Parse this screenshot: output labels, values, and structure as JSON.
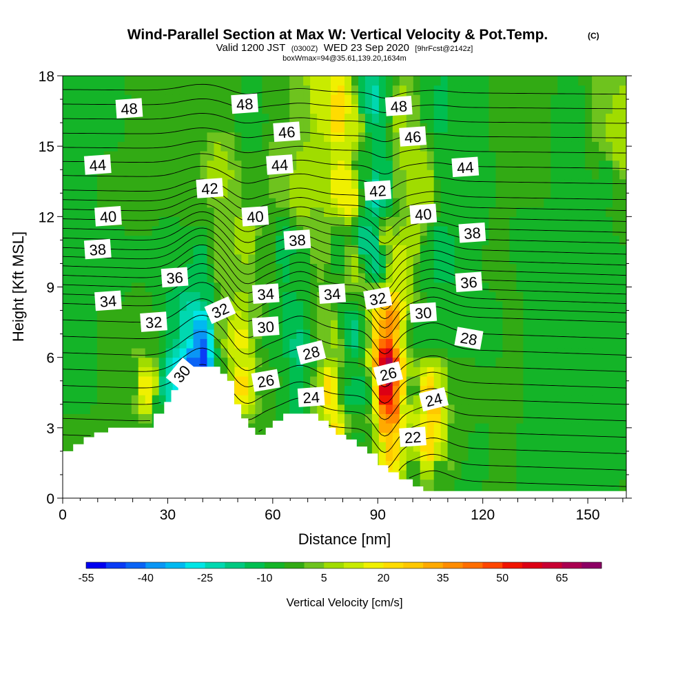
{
  "chart_data": {
    "type": "heatmap",
    "title": "Wind-Parallel Section at Max W: Vertical Velocity & Pot.Temp.",
    "title_suffix": "(C)",
    "subtitle_parts": {
      "a": "Valid 1200 JST",
      "b": "(0300Z)",
      "c": "WED 23 Sep 2020",
      "d": "[9hrFcst@2142z]"
    },
    "subtitle2": "boxWmax=94@35.61,139.20,1634m",
    "xlabel": "Distance [nm]",
    "ylabel": "Height [Kft MSL]",
    "xlim": [
      0,
      161
    ],
    "ylim": [
      0,
      18
    ],
    "x_ticks": [
      0,
      30,
      60,
      90,
      120,
      150
    ],
    "y_ticks": [
      0,
      3,
      6,
      9,
      12,
      15,
      18
    ],
    "colorbar": {
      "title": "Vertical Velocity [cm/s]",
      "tick_labels": [
        "-55",
        "-40",
        "-25",
        "-10",
        "5",
        "20",
        "35",
        "50",
        "65"
      ],
      "range": [
        -55,
        75
      ],
      "step": 5,
      "colors": [
        "#0000f0",
        "#0a3cf5",
        "#0a64f5",
        "#0a96f5",
        "#00b9f0",
        "#00e6e6",
        "#00d8b0",
        "#00c880",
        "#00be50",
        "#14b428",
        "#32aa14",
        "#6ec31e",
        "#a0dc00",
        "#c8eb00",
        "#f0f000",
        "#ffdc00",
        "#ffc800",
        "#ffaa00",
        "#ff8c00",
        "#ff6e00",
        "#ff4600",
        "#f01400",
        "#dc0014",
        "#c80032",
        "#aa0050",
        "#8c0064"
      ]
    },
    "terrain": [
      [
        0,
        2.0
      ],
      [
        3,
        2.0
      ],
      [
        3,
        2.3
      ],
      [
        6,
        2.3
      ],
      [
        6,
        2.6
      ],
      [
        9,
        2.6
      ],
      [
        9,
        2.8
      ],
      [
        13,
        2.8
      ],
      [
        13,
        3.0
      ],
      [
        26,
        3.0
      ],
      [
        26,
        3.6
      ],
      [
        29,
        3.6
      ],
      [
        29,
        4.1
      ],
      [
        31,
        4.1
      ],
      [
        31,
        4.6
      ],
      [
        33,
        4.6
      ],
      [
        33,
        5.1
      ],
      [
        35,
        5.1
      ],
      [
        35,
        5.6
      ],
      [
        45,
        5.6
      ],
      [
        45,
        5.3
      ],
      [
        47,
        5.3
      ],
      [
        47,
        5.0
      ],
      [
        49,
        5.0
      ],
      [
        49,
        4.0
      ],
      [
        51,
        4.0
      ],
      [
        51,
        3.4
      ],
      [
        53,
        3.4
      ],
      [
        53,
        3.0
      ],
      [
        55,
        3.0
      ],
      [
        55,
        2.7
      ],
      [
        58,
        2.7
      ],
      [
        58,
        3.0
      ],
      [
        60,
        3.0
      ],
      [
        60,
        3.3
      ],
      [
        63,
        3.3
      ],
      [
        63,
        3.6
      ],
      [
        73,
        3.6
      ],
      [
        73,
        3.3
      ],
      [
        76,
        3.3
      ],
      [
        76,
        3.0
      ],
      [
        78,
        3.0
      ],
      [
        78,
        2.7
      ],
      [
        81,
        2.7
      ],
      [
        81,
        2.5
      ],
      [
        84,
        2.5
      ],
      [
        84,
        2.2
      ],
      [
        87,
        2.2
      ],
      [
        87,
        1.9
      ],
      [
        90,
        1.9
      ],
      [
        90,
        1.4
      ],
      [
        93,
        1.4
      ],
      [
        93,
        1.1
      ],
      [
        96,
        1.1
      ],
      [
        96,
        0.8
      ],
      [
        100,
        0.8
      ],
      [
        100,
        0.5
      ],
      [
        103,
        0.5
      ],
      [
        103,
        0.3
      ],
      [
        110,
        0.3
      ],
      [
        110,
        0.3
      ],
      [
        161,
        0.3
      ]
    ],
    "w_points": [
      [
        6,
        17.5,
        -8
      ],
      [
        13,
        16.5,
        -6
      ],
      [
        25,
        17,
        -4
      ],
      [
        35,
        16,
        -5
      ],
      [
        45,
        17,
        -3
      ],
      [
        54,
        16,
        -7
      ],
      [
        62,
        17,
        -4
      ],
      [
        68,
        16.5,
        3
      ],
      [
        74,
        17,
        12
      ],
      [
        79,
        16.5,
        22
      ],
      [
        83,
        16,
        14
      ],
      [
        87,
        17,
        -15
      ],
      [
        90,
        17,
        -22
      ],
      [
        92,
        17,
        -10
      ],
      [
        96,
        16.5,
        8
      ],
      [
        100,
        16.5,
        3
      ],
      [
        104,
        17,
        -8
      ],
      [
        108,
        16.5,
        -12
      ],
      [
        114,
        17,
        -6
      ],
      [
        125,
        16,
        -5
      ],
      [
        135,
        17,
        -4
      ],
      [
        145,
        16.5,
        -6
      ],
      [
        156,
        17,
        5
      ],
      [
        159,
        15,
        8
      ],
      [
        6,
        14,
        -5
      ],
      [
        15,
        13,
        -3
      ],
      [
        25,
        14,
        -2
      ],
      [
        35,
        13,
        -3
      ],
      [
        45,
        14,
        6
      ],
      [
        55,
        13,
        -2
      ],
      [
        63,
        14,
        4
      ],
      [
        68,
        13,
        8
      ],
      [
        74,
        14,
        6
      ],
      [
        79,
        13.5,
        16
      ],
      [
        82,
        13,
        18
      ],
      [
        86,
        14,
        -8
      ],
      [
        90,
        13,
        -22
      ],
      [
        92,
        13.5,
        -14
      ],
      [
        96,
        13.5,
        2
      ],
      [
        99,
        14,
        10
      ],
      [
        104,
        13.5,
        8
      ],
      [
        108,
        14,
        -6
      ],
      [
        114,
        13,
        -8
      ],
      [
        125,
        13.5,
        -5
      ],
      [
        135,
        14,
        -4
      ],
      [
        145,
        13,
        -7
      ],
      [
        156,
        13.5,
        -6
      ],
      [
        159,
        12.5,
        -4
      ],
      [
        6,
        11,
        -9
      ],
      [
        14,
        10,
        -7
      ],
      [
        22,
        11,
        -5
      ],
      [
        32,
        10.5,
        -6
      ],
      [
        40,
        9.5,
        -12
      ],
      [
        45,
        10,
        2
      ],
      [
        52,
        11,
        6
      ],
      [
        58,
        10,
        -3
      ],
      [
        64,
        10.5,
        -12
      ],
      [
        68,
        10,
        -6
      ],
      [
        74,
        11,
        4
      ],
      [
        79,
        10.5,
        -8
      ],
      [
        83,
        10,
        6
      ],
      [
        86,
        11,
        -16
      ],
      [
        90,
        10.5,
        -20
      ],
      [
        92,
        11,
        6
      ],
      [
        96,
        10,
        12
      ],
      [
        100,
        11,
        6
      ],
      [
        104,
        10,
        -10
      ],
      [
        109,
        10.5,
        -14
      ],
      [
        114,
        11,
        -5
      ],
      [
        125,
        10.5,
        -5
      ],
      [
        135,
        11,
        -6
      ],
      [
        145,
        10,
        -5
      ],
      [
        156,
        10.5,
        -6
      ],
      [
        6,
        8,
        -6
      ],
      [
        13,
        7.2,
        -4
      ],
      [
        20,
        8,
        -5
      ],
      [
        25,
        7,
        -3
      ],
      [
        31,
        7.5,
        -10
      ],
      [
        35,
        7,
        -22
      ],
      [
        38,
        6.5,
        -35
      ],
      [
        40,
        6.2,
        -45
      ],
      [
        42,
        6.5,
        -28
      ],
      [
        45,
        7,
        4
      ],
      [
        48,
        6.8,
        12
      ],
      [
        51,
        6.8,
        16
      ],
      [
        55,
        7.5,
        4
      ],
      [
        58,
        7,
        -6
      ],
      [
        62,
        6.8,
        -8
      ],
      [
        65,
        7.2,
        -14
      ],
      [
        67,
        6.5,
        -18
      ],
      [
        70,
        6.5,
        -10
      ],
      [
        74,
        7,
        4
      ],
      [
        78,
        7,
        6
      ],
      [
        80,
        7.5,
        -10
      ],
      [
        83,
        7,
        -16
      ],
      [
        86,
        7,
        -10
      ],
      [
        89,
        7,
        20
      ],
      [
        90,
        6.8,
        30
      ],
      [
        92,
        6.2,
        55
      ],
      [
        94,
        7.2,
        40
      ],
      [
        96,
        7,
        28
      ],
      [
        98,
        7,
        8
      ],
      [
        100,
        7,
        -8
      ],
      [
        104,
        7,
        -6
      ],
      [
        108,
        7.5,
        -10
      ],
      [
        113,
        7,
        -8
      ],
      [
        120,
        7,
        -6
      ],
      [
        130,
        8,
        -5
      ],
      [
        140,
        7,
        -6
      ],
      [
        150,
        7.5,
        -5
      ],
      [
        158,
        7,
        -5
      ],
      [
        6,
        5,
        -6
      ],
      [
        13,
        4.5,
        -5
      ],
      [
        20,
        5,
        -3
      ],
      [
        23,
        4.8,
        16
      ],
      [
        25,
        4.5,
        20
      ],
      [
        27,
        4,
        -8
      ],
      [
        30,
        4.5,
        -22
      ],
      [
        33,
        5,
        -30
      ],
      [
        37,
        5.5,
        -42
      ],
      [
        40,
        5.8,
        -50
      ],
      [
        45,
        5.5,
        -6
      ],
      [
        48,
        5,
        10
      ],
      [
        51,
        4.8,
        22
      ],
      [
        54,
        5,
        12
      ],
      [
        57,
        5,
        -5
      ],
      [
        60,
        4.8,
        -4
      ],
      [
        63,
        4.5,
        -5
      ],
      [
        65,
        4.5,
        -12
      ],
      [
        67,
        4.5,
        -14
      ],
      [
        70,
        4.5,
        -8
      ],
      [
        73,
        4.5,
        8
      ],
      [
        76,
        4.5,
        24
      ],
      [
        78,
        4.2,
        16
      ],
      [
        80,
        4.5,
        -4
      ],
      [
        82,
        4.5,
        -12
      ],
      [
        85,
        4.5,
        -14
      ],
      [
        88,
        4.5,
        -6
      ],
      [
        90,
        4.5,
        22
      ],
      [
        92,
        4.5,
        60
      ],
      [
        93,
        5.5,
        70
      ],
      [
        94,
        4,
        50
      ],
      [
        96,
        4.2,
        34
      ],
      [
        98,
        4,
        12
      ],
      [
        100,
        4.5,
        -3
      ],
      [
        102,
        4,
        10
      ],
      [
        104,
        4.3,
        26
      ],
      [
        106,
        4,
        28
      ],
      [
        108,
        4.5,
        10
      ],
      [
        112,
        4.5,
        -3
      ],
      [
        120,
        4.5,
        -5
      ],
      [
        130,
        4.5,
        -5
      ],
      [
        140,
        4.5,
        -6
      ],
      [
        150,
        4.5,
        -6
      ],
      [
        158,
        4.5,
        -5
      ],
      [
        6,
        2.5,
        -4
      ],
      [
        13,
        2.2,
        -5
      ],
      [
        20,
        2.5,
        -4
      ],
      [
        27,
        2.5,
        -6
      ],
      [
        32,
        2,
        -5
      ],
      [
        40,
        2,
        -4
      ],
      [
        50,
        2.5,
        -3
      ],
      [
        57,
        2.2,
        -4
      ],
      [
        62,
        2.5,
        -5
      ],
      [
        70,
        2.5,
        -4
      ],
      [
        75,
        2.5,
        6
      ],
      [
        78,
        2.8,
        22
      ],
      [
        80,
        2.5,
        20
      ],
      [
        82,
        2.5,
        -3
      ],
      [
        84,
        2.5,
        -6
      ],
      [
        86,
        2.5,
        -5
      ],
      [
        88,
        2.5,
        -2
      ],
      [
        90,
        2.5,
        10
      ],
      [
        92,
        3,
        32
      ],
      [
        94,
        2.5,
        28
      ],
      [
        96,
        2.2,
        20
      ],
      [
        98,
        2.2,
        10
      ],
      [
        100,
        2.5,
        4
      ],
      [
        102,
        2.5,
        14
      ],
      [
        104,
        2.5,
        26
      ],
      [
        106,
        2.5,
        22
      ],
      [
        108,
        2.2,
        10
      ],
      [
        112,
        2.5,
        -3
      ],
      [
        118,
        2,
        -6
      ],
      [
        125,
        1.5,
        -5
      ],
      [
        135,
        1.5,
        -6
      ],
      [
        145,
        1,
        -6
      ],
      [
        155,
        1,
        -5
      ],
      [
        100,
        1,
        -4
      ],
      [
        108,
        1,
        -4
      ],
      [
        115,
        0.6,
        -6
      ],
      [
        125,
        0.5,
        -5
      ],
      [
        140,
        0.5,
        -6
      ],
      [
        158,
        0.5,
        -5
      ]
    ],
    "theta_levels_C": [
      20,
      21,
      22,
      23,
      24,
      25,
      26,
      27,
      28,
      29,
      30,
      31,
      32,
      33,
      34,
      35,
      36,
      37,
      38,
      39,
      40,
      41,
      42,
      43,
      44,
      45,
      46,
      47,
      48,
      49
    ],
    "contour_labels": [
      {
        "text": "48",
        "x": 19,
        "y": 16.6,
        "a": -4
      },
      {
        "text": "48",
        "x": 52,
        "y": 16.8,
        "a": -4
      },
      {
        "text": "48",
        "x": 96,
        "y": 16.7,
        "a": -4
      },
      {
        "text": "46",
        "x": 64,
        "y": 15.6,
        "a": -4
      },
      {
        "text": "46",
        "x": 100,
        "y": 15.4,
        "a": -4
      },
      {
        "text": "44",
        "x": 10,
        "y": 14.2,
        "a": -4
      },
      {
        "text": "44",
        "x": 62,
        "y": 14.2,
        "a": -4
      },
      {
        "text": "44",
        "x": 115,
        "y": 14.1,
        "a": -4
      },
      {
        "text": "42",
        "x": 42,
        "y": 13.2,
        "a": -4
      },
      {
        "text": "42",
        "x": 90,
        "y": 13.1,
        "a": -4
      },
      {
        "text": "40",
        "x": 13,
        "y": 12.0,
        "a": -4
      },
      {
        "text": "40",
        "x": 55,
        "y": 12.0,
        "a": -4
      },
      {
        "text": "40",
        "x": 103,
        "y": 12.1,
        "a": -4
      },
      {
        "text": "38",
        "x": 10,
        "y": 10.6,
        "a": -4
      },
      {
        "text": "38",
        "x": 67,
        "y": 11.0,
        "a": -4
      },
      {
        "text": "38",
        "x": 117,
        "y": 11.3,
        "a": -4
      },
      {
        "text": "36",
        "x": 32,
        "y": 9.4,
        "a": -4
      },
      {
        "text": "36",
        "x": 116,
        "y": 9.2,
        "a": -4
      },
      {
        "text": "34",
        "x": 13,
        "y": 8.4,
        "a": -4
      },
      {
        "text": "34",
        "x": 58,
        "y": 8.7,
        "a": -4
      },
      {
        "text": "34",
        "x": 77,
        "y": 8.7,
        "a": -4
      },
      {
        "text": "32",
        "x": 26,
        "y": 7.5,
        "a": -4
      },
      {
        "text": "32",
        "x": 45,
        "y": 8.0,
        "a": -24
      },
      {
        "text": "32",
        "x": 90,
        "y": 8.5,
        "a": -10
      },
      {
        "text": "30",
        "x": 34,
        "y": 5.3,
        "a": -50
      },
      {
        "text": "30",
        "x": 58,
        "y": 7.3,
        "a": -4
      },
      {
        "text": "30",
        "x": 103,
        "y": 7.9,
        "a": -4
      },
      {
        "text": "28",
        "x": 71,
        "y": 6.2,
        "a": -14
      },
      {
        "text": "28",
        "x": 116,
        "y": 6.8,
        "a": 10
      },
      {
        "text": "26",
        "x": 58,
        "y": 5.0,
        "a": -10
      },
      {
        "text": "26",
        "x": 93,
        "y": 5.3,
        "a": -14
      },
      {
        "text": "24",
        "x": 71,
        "y": 4.3,
        "a": -4
      },
      {
        "text": "24",
        "x": 106,
        "y": 4.2,
        "a": -14
      },
      {
        "text": "22",
        "x": 100,
        "y": 2.6,
        "a": -4
      }
    ]
  }
}
